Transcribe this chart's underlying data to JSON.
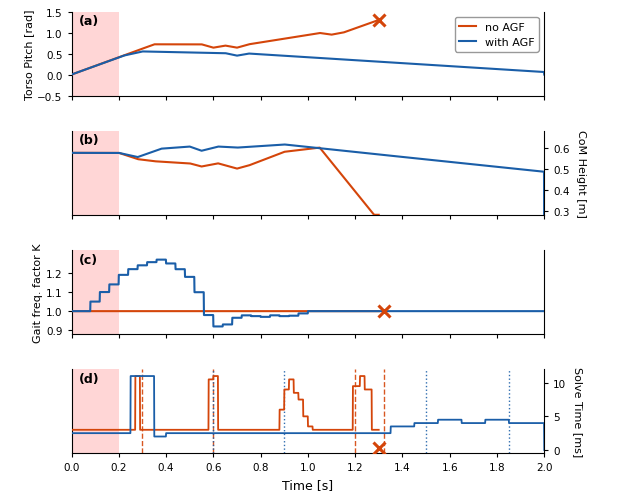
{
  "xlim": [
    0,
    2
  ],
  "pink_end": 0.2,
  "pink_color": "#FFD6D6",
  "orange_color": "#D4450A",
  "blue_color": "#1A5EA8",
  "panel_labels": [
    "(a)",
    "(b)",
    "(c)",
    "(d)"
  ],
  "legend_labels": [
    "no AGF",
    "with AGF"
  ],
  "xlabel": "Time [s]",
  "ylabel_a": "Torso Pitch [rad]",
  "ylabel_b": "CoM Height [m]",
  "ylabel_c": "Gait freq. factor K",
  "ylabel_d": "Solve Time [ms]",
  "ylim_a": [
    -0.5,
    1.5
  ],
  "yticks_a": [
    -0.5,
    0.0,
    0.5,
    1.0,
    1.5
  ],
  "ylim_b": [
    0.28,
    0.68
  ],
  "yticks_b": [
    0.3,
    0.4,
    0.5,
    0.6
  ],
  "ylim_c": [
    0.88,
    1.32
  ],
  "yticks_c": [
    0.9,
    1.0,
    1.1,
    1.2
  ],
  "ylim_d": [
    -0.5,
    12
  ],
  "yticks_d": [
    0,
    5,
    10
  ],
  "x_marker_a": 1.3,
  "y_marker_a": 1.3,
  "x_marker_c": 1.32,
  "y_marker_c": 1.0,
  "x_marker_d": 1.3,
  "y_marker_d": 0.3,
  "dashed_lines_orange_d": [
    0.3,
    0.6,
    1.2,
    1.32
  ],
  "dashed_lines_blue_d": [
    0.6,
    0.9,
    1.5,
    1.85
  ]
}
